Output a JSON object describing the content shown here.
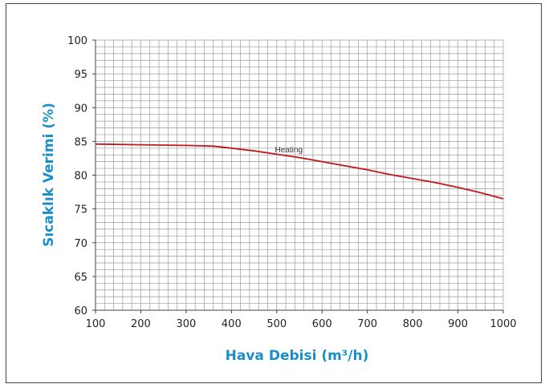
{
  "chart_data": {
    "type": "line",
    "title": "",
    "xlabel": "Hava Debisi  (m³/h)",
    "ylabel": "Sıcaklık Verimi (%)",
    "xlim": [
      100,
      1000
    ],
    "ylim": [
      60,
      100
    ],
    "x_ticks": [
      100,
      200,
      300,
      400,
      500,
      600,
      700,
      800,
      900,
      1000
    ],
    "y_ticks": [
      60,
      65,
      70,
      75,
      80,
      85,
      90,
      95,
      100
    ],
    "grid": true,
    "legend": "none",
    "colors": {
      "axis_title": "#1a8fc8",
      "series": "#c0161d",
      "grid": "#9a9a9a"
    },
    "series": [
      {
        "label": "Heating",
        "x": [
          100,
          200,
          300,
          360,
          400,
          450,
          500,
          550,
          600,
          650,
          700,
          750,
          800,
          850,
          900,
          950,
          1000
        ],
        "y": [
          84.6,
          84.5,
          84.4,
          84.3,
          84.0,
          83.6,
          83.1,
          82.6,
          82.0,
          81.4,
          80.8,
          80.1,
          79.5,
          78.9,
          78.2,
          77.4,
          76.5
        ]
      }
    ],
    "annotations": [
      {
        "text": "Heating",
        "x": 535,
        "y": 82.8
      }
    ]
  }
}
